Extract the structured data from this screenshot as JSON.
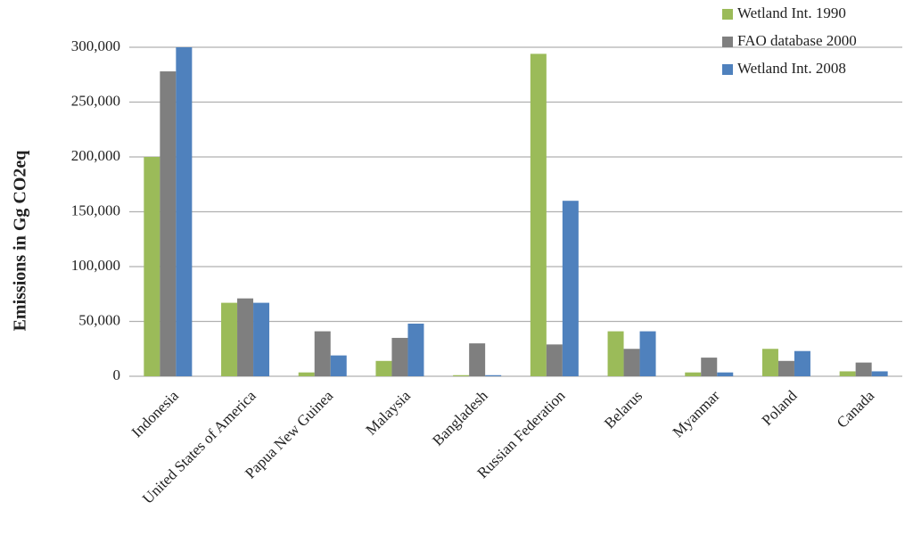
{
  "chart_data": {
    "type": "bar",
    "y_label": "Emissions in Gg CO2eq",
    "categories": [
      "Indonesia",
      "United States of America",
      "Papua New Guinea",
      "Malaysia",
      "Bangladesh",
      "Russian Federation",
      "Belarus",
      "Myanmar",
      "Poland",
      "Canada"
    ],
    "series": [
      {
        "name": "Wetland Int. 1990",
        "color": "#9bbb59",
        "values": [
          200000,
          67000,
          3500,
          14000,
          1000,
          294000,
          41000,
          3500,
          25000,
          4500
        ]
      },
      {
        "name": "FAO database 2000",
        "color": "#7f7f7f",
        "values": [
          278000,
          71000,
          41000,
          35000,
          30000,
          29000,
          25000,
          17000,
          14000,
          12500
        ]
      },
      {
        "name": "Wetland Int. 2008",
        "color": "#4f81bd",
        "values": [
          300000,
          67000,
          19000,
          48000,
          1000,
          160000,
          41000,
          3500,
          23000,
          4500
        ]
      }
    ],
    "ylim": [
      0,
      300000
    ],
    "yticks": [
      0,
      {
        "value": 50000,
        "label": "50,000"
      },
      {
        "value": 100000,
        "label": "100,000"
      },
      {
        "value": 150000,
        "label": "150,000"
      },
      {
        "value": 200000,
        "label": "200,000"
      },
      {
        "value": 250000,
        "label": "250,000"
      },
      {
        "value": 300000,
        "label": "300,000"
      }
    ],
    "grid": true,
    "legend": "top-right"
  }
}
